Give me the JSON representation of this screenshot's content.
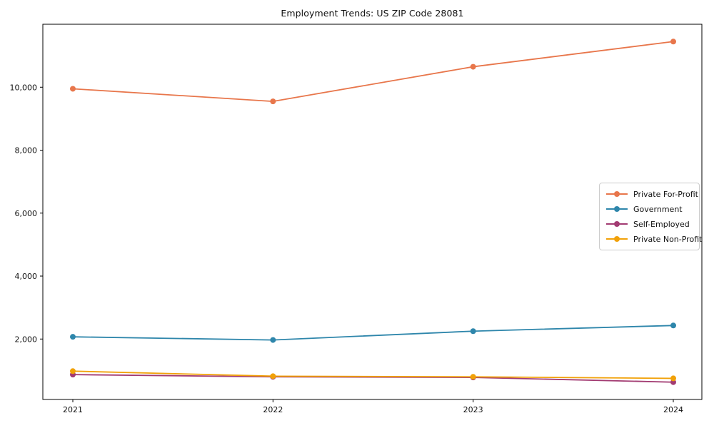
{
  "chart_data": {
    "type": "line",
    "title": "Employment Trends: US ZIP Code 28081",
    "xlabel": "",
    "ylabel": "",
    "x": [
      2021,
      2022,
      2023,
      2024
    ],
    "x_tick_labels": [
      "2021",
      "2022",
      "2023",
      "2024"
    ],
    "yticks": [
      2000,
      4000,
      6000,
      8000,
      10000
    ],
    "ytick_labels": [
      "2,000",
      "4,000",
      "6,000",
      "8,000",
      "10,000"
    ],
    "ylim": [
      80,
      12000
    ],
    "grid": false,
    "legend_position": "center-right",
    "series": [
      {
        "name": "Private For-Profit",
        "color": "#E8764B",
        "values": [
          9950,
          9550,
          10650,
          11450
        ]
      },
      {
        "name": "Government",
        "color": "#2E86AB",
        "values": [
          2070,
          1970,
          2250,
          2430
        ]
      },
      {
        "name": "Self-Employed",
        "color": "#A23B72",
        "values": [
          870,
          800,
          780,
          630
        ]
      },
      {
        "name": "Private Non-Profit",
        "color": "#F1A108",
        "values": [
          980,
          820,
          800,
          750
        ]
      }
    ]
  },
  "colors": {
    "background": "#ffffff",
    "axis": "#000000",
    "text": "#111111",
    "legend_border": "#cccccc"
  }
}
